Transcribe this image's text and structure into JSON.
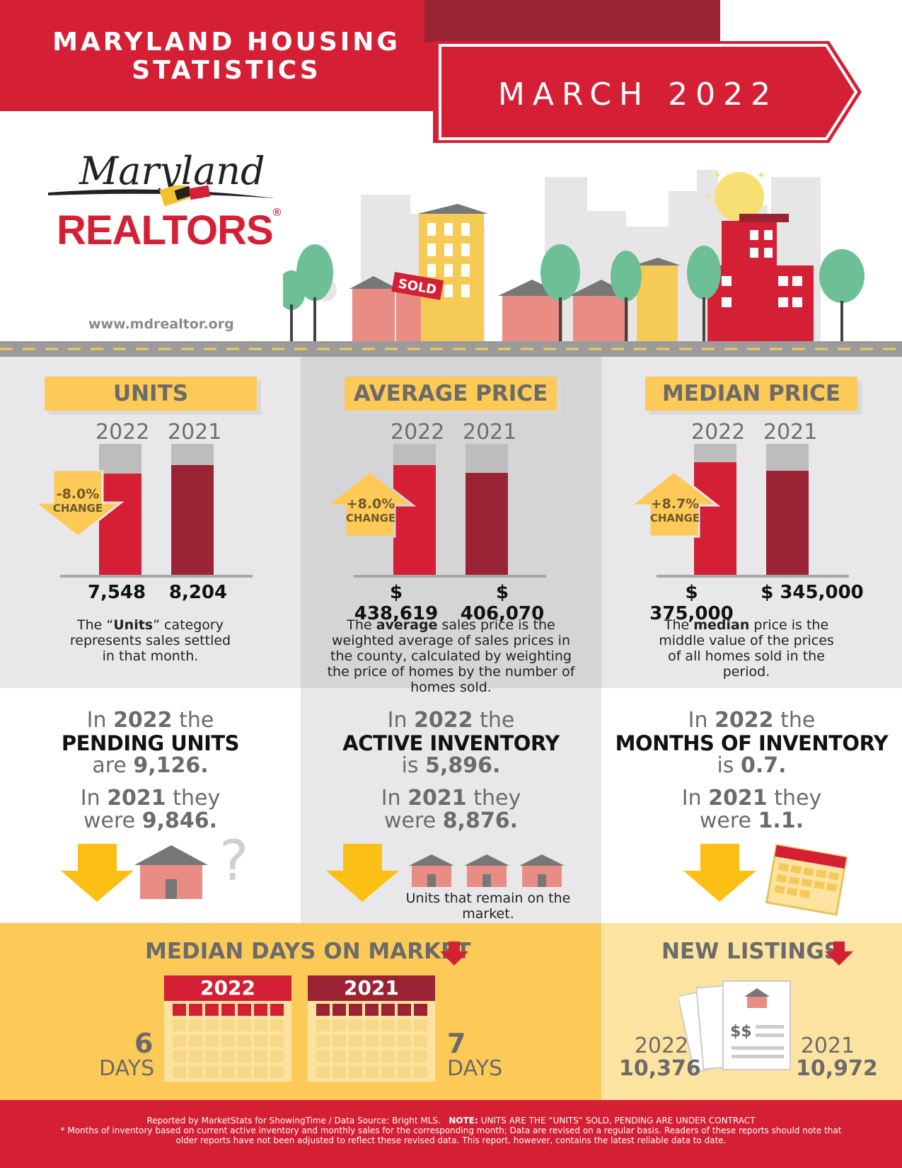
{
  "header": {
    "title_line1": "MARYLAND HOUSING",
    "title_line2": "STATISTICS",
    "date": "MARCH 2022"
  },
  "logo": {
    "script": "Maryland",
    "word": "REALTORS",
    "reg": "®"
  },
  "website": "www.mdrealtor.org",
  "sold_sign": "SOLD",
  "units": {
    "title": "UNITS",
    "year_a": "2022",
    "year_b": "2021",
    "value_a": "7,548",
    "value_b": "8,204",
    "change": "-8.0%",
    "change_label": "CHANGE",
    "desc_pre": "The “",
    "desc_bold": "Units",
    "desc_post": "” category represents sales settled in that month."
  },
  "avg_price": {
    "title": "AVERAGE PRICE",
    "year_a": "2022",
    "year_b": "2021",
    "value_a": "$ 438,619",
    "value_b": "$ 406,070",
    "change": "+8.0%",
    "change_label": "CHANGE",
    "desc_pre": "The ",
    "desc_bold": "average",
    "desc_post": " sales price is the weighted average of sales prices in the county, calculated by weighting the price of homes by the number of homes sold."
  },
  "median_price": {
    "title": "MEDIAN PRICE",
    "year_a": "2022",
    "year_b": "2021",
    "value_a": "$ 375,000",
    "value_b": "$ 345,000",
    "change": "+8.7%",
    "change_label": "CHANGE",
    "desc_pre": "The ",
    "desc_bold": "median",
    "desc_post": " price is the middle value of the prices of all homes sold in the period."
  },
  "pending": {
    "in": "In",
    "year_a": "2022",
    "the": "the",
    "label": "PENDING UNITS",
    "verb_a": "are",
    "value_a": "9,126.",
    "year_b": "2021",
    "they": "they",
    "verb_b": "were",
    "value_b": "9,846.",
    "question": "?"
  },
  "active_inventory": {
    "in": "In",
    "year_a": "2022",
    "the": "the",
    "label": "ACTIVE INVENTORY",
    "verb_a": "is",
    "value_a": "5,896.",
    "year_b": "2021",
    "they": "they",
    "verb_b": "were",
    "value_b": "8,876.",
    "note": "Units that remain on the market."
  },
  "months_inventory": {
    "in": "In",
    "year_a": "2022",
    "the": "the",
    "label": "MONTHS OF INVENTORY",
    "verb_a": "is",
    "value_a": "0.7.",
    "year_b": "2021",
    "they": "they",
    "verb_b": "were",
    "value_b": "1.1."
  },
  "days_on_market": {
    "title": "MEDIAN DAYS ON MARKET",
    "year_a": "2022",
    "year_b": "2021",
    "days_a": "6",
    "days_b": "7",
    "days_label": "DAYS"
  },
  "new_listings": {
    "title": "NEW LISTINGS",
    "year_a": "2022",
    "value_a": "10,376",
    "year_b": "2021",
    "value_b": "10,972",
    "dollar": "$$"
  },
  "footer": {
    "line1": "Reported by MarketStats for ShowingTime / Data Source: Bright MLS.",
    "note_bold": "NOTE:",
    "note_text": "UNITS ARE THE “UNITS” SOLD, PENDING ARE UNDER CONTRACT",
    "line2": "* Months of inventory based on current active inventory and monthly sales for the corresponding month;  Data are revised on a regular basis. Readers of these reports should note that older reports have not been adjusted to reflect these revised data. This report, however, contains the latest reliable data to date."
  },
  "colors": {
    "red": "#d51f35",
    "dark_red": "#9a2433",
    "yellow": "#fdca57",
    "gray_text": "#6b6b6b"
  },
  "icons": [
    "down-arrow-icon",
    "up-arrow-icon",
    "house-icon",
    "question-icon",
    "calendar-icon",
    "document-icon"
  ],
  "chart_data": [
    {
      "type": "bar",
      "title": "UNITS",
      "categories": [
        "2022",
        "2021"
      ],
      "values": [
        7548,
        8204
      ]
    },
    {
      "type": "bar",
      "title": "AVERAGE PRICE",
      "categories": [
        "2022",
        "2021"
      ],
      "values": [
        438619,
        406070
      ]
    },
    {
      "type": "bar",
      "title": "MEDIAN PRICE",
      "categories": [
        "2022",
        "2021"
      ],
      "values": [
        375000,
        345000
      ]
    }
  ]
}
